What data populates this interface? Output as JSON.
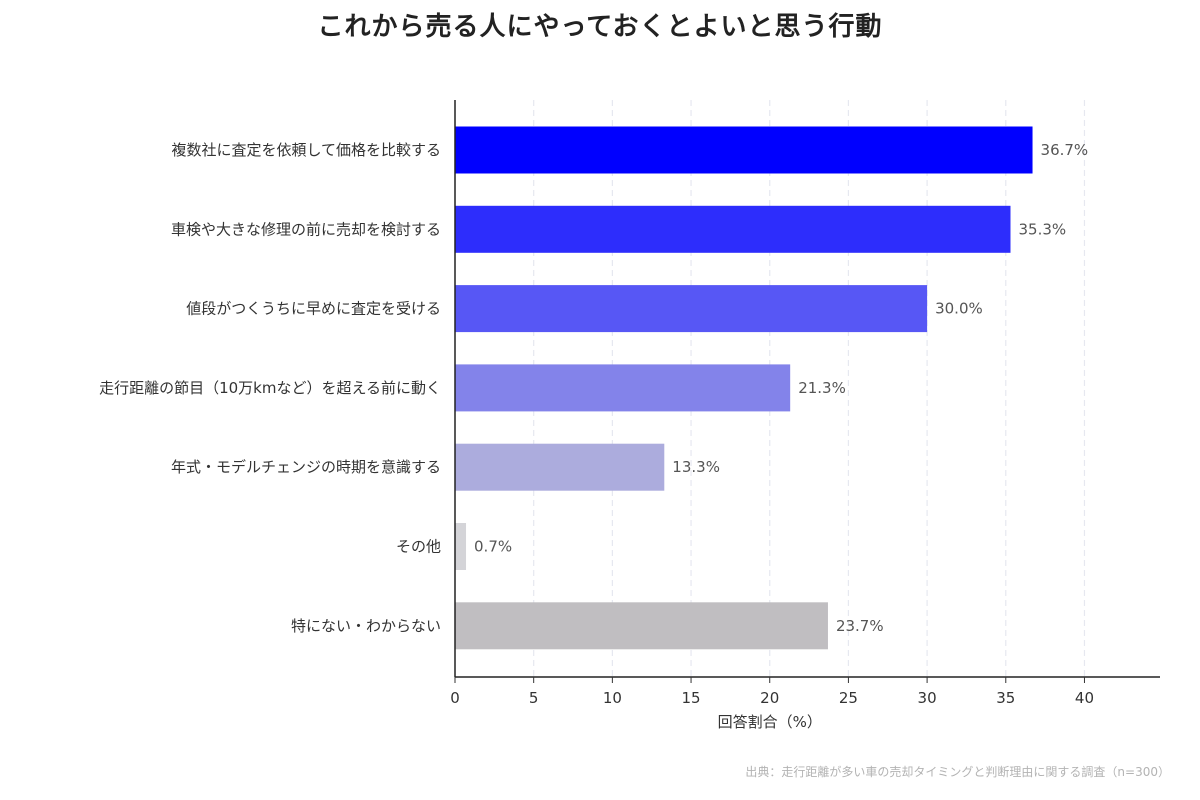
{
  "source_note": "出典：走行距離が多い車の売却タイミングと判断理由に関する調査（n=300）",
  "chart_data": {
    "type": "bar",
    "orientation": "horizontal",
    "title": "これから売る人にやっておくとよいと思う行動",
    "xlabel": "回答割合（%）",
    "ylabel": "",
    "xlim": [
      0,
      44.8
    ],
    "xticks": [
      0,
      5,
      10,
      15,
      20,
      25,
      30,
      35,
      40
    ],
    "grid": "vertical dashed",
    "categories": [
      "複数社に査定を依頼して価格を比較する",
      "車検や大きな修理の前に売却を検討する",
      "値段がつくうちに早めに査定を受ける",
      "走行距離の節目（10万kmなど）を超える前に動く",
      "年式・モデルチェンジの時期を意識する",
      "その他",
      "特にない・わからない"
    ],
    "values": [
      36.7,
      35.3,
      30.0,
      21.3,
      13.3,
      0.7,
      23.7
    ],
    "value_labels": [
      "36.7%",
      "35.3%",
      "30.0%",
      "21.3%",
      "13.3%",
      "0.7%",
      "23.7%"
    ],
    "colors": [
      "#0000ff",
      "#2d2dfc",
      "#5757f5",
      "#8383ea",
      "#acacdd",
      "#d4d4d8",
      "#c0bec1"
    ]
  }
}
